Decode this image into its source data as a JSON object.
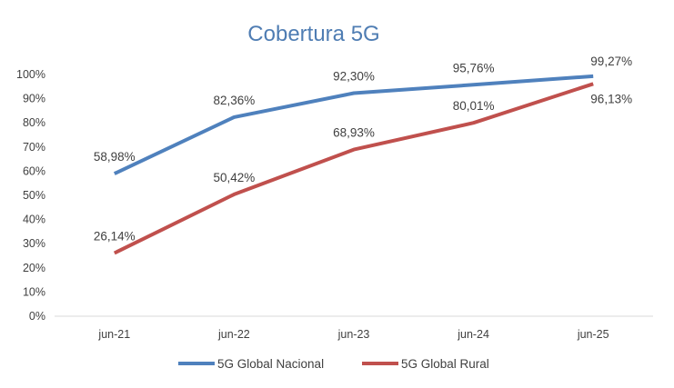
{
  "chart_data": {
    "type": "line",
    "title": "Cobertura 5G",
    "xlabel": "",
    "ylabel": "",
    "categories": [
      "jun-21",
      "jun-22",
      "jun-23",
      "jun-24",
      "jun-25"
    ],
    "ylim": [
      0,
      100
    ],
    "yticks": [
      0,
      10,
      20,
      30,
      40,
      50,
      60,
      70,
      80,
      90,
      100
    ],
    "ytick_labels": [
      "0%",
      "10%",
      "20%",
      "30%",
      "40%",
      "50%",
      "60%",
      "70%",
      "80%",
      "90%",
      "100%"
    ],
    "grid": false,
    "legend_position": "bottom",
    "series": [
      {
        "name": "5G Global Nacional",
        "color": "#4f81bd",
        "values": [
          58.98,
          82.36,
          92.3,
          95.76,
          99.27
        ],
        "labels": [
          "58,98%",
          "82,36%",
          "92,30%",
          "95,76%",
          "99,27%"
        ]
      },
      {
        "name": "5G Global Rural",
        "color": "#c0504d",
        "values": [
          26.14,
          50.42,
          68.93,
          80.01,
          96.13
        ],
        "labels": [
          "26,14%",
          "50,42%",
          "68,93%",
          "80,01%",
          "96,13%"
        ]
      }
    ]
  }
}
